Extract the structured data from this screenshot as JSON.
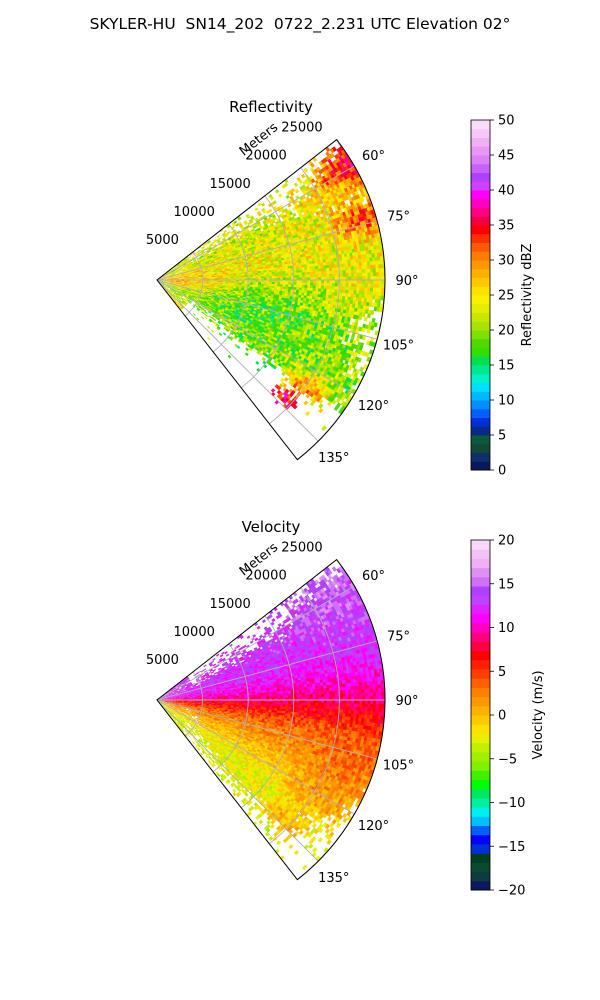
{
  "figure": {
    "title": "SKYLER-HU  SN14_202  0722_2.231 UTC Elevation 02°"
  },
  "chart_data": [
    {
      "type": "heatmap",
      "projection": "polar-sector",
      "title": "Reflectivity",
      "radial_axis_label": "Meters",
      "radial_range": [
        0,
        25000
      ],
      "radial_ticks": [
        5000,
        10000,
        15000,
        20000,
        25000
      ],
      "radial_tick_labels": [
        "5000",
        "10000",
        "15000",
        "20000",
        "25000"
      ],
      "azimuth_range_deg": [
        52,
        142
      ],
      "azimuth_ticks_deg": [
        60,
        75,
        90,
        105,
        120,
        135
      ],
      "azimuth_tick_labels": [
        "60°",
        "75°",
        "90°",
        "105°",
        "120°",
        "135°"
      ],
      "grid": true,
      "colorbar": {
        "label": "Reflectivity dBZ",
        "range": [
          0,
          50
        ],
        "ticks": [
          0,
          5,
          10,
          15,
          20,
          25,
          30,
          35,
          40,
          45,
          50
        ],
        "tick_labels": [
          "0",
          "5",
          "10",
          "15",
          "20",
          "25",
          "30",
          "35",
          "40",
          "45",
          "50"
        ],
        "colors": [
          "#0a1a5c",
          "#0f2f6a",
          "#124a3a",
          "#0b5a3a",
          "#0a2a8a",
          "#0030d8",
          "#0060ff",
          "#0090ff",
          "#00b8ff",
          "#00e0ff",
          "#00f0c8",
          "#00e890",
          "#00e050",
          "#30e000",
          "#50d800",
          "#7ee000",
          "#a8e400",
          "#c8e800",
          "#e4ec00",
          "#f8f000",
          "#ffe000",
          "#ffc800",
          "#ffb000",
          "#ff9800",
          "#ff7c00",
          "#ff5a00",
          "#ff3000",
          "#ff0000",
          "#f20040",
          "#ff0080",
          "#ff00c0",
          "#ff00ff",
          "#d040ff",
          "#b040ff",
          "#c860ff",
          "#dc80f8",
          "#e898f4",
          "#f0b0f4",
          "#f6c8f8",
          "#fadcfa"
        ]
      },
      "blobs": [
        {
          "az": 68,
          "r": 8000,
          "rw": 9000,
          "aw": 11,
          "value": 22
        },
        {
          "az": 80,
          "r": 14000,
          "rw": 10000,
          "aw": 16,
          "value": 25
        },
        {
          "az": 88,
          "r": 19000,
          "rw": 8000,
          "aw": 12,
          "value": 22
        },
        {
          "az": 95,
          "r": 4000,
          "rw": 5000,
          "aw": 18,
          "value": 28
        },
        {
          "az": 98,
          "r": 2500,
          "rw": 2200,
          "aw": 7,
          "value": 33
        },
        {
          "az": 100,
          "r": 9000,
          "rw": 8000,
          "aw": 10,
          "value": 20
        },
        {
          "az": 108,
          "r": 11000,
          "rw": 9000,
          "aw": 12,
          "value": 14
        },
        {
          "az": 112,
          "r": 15000,
          "rw": 9000,
          "aw": 9,
          "value": 22
        },
        {
          "az": 120,
          "r": 18000,
          "rw": 10000,
          "aw": 6,
          "value": 20
        },
        {
          "az": 62,
          "r": 22500,
          "rw": 4000,
          "aw": 6,
          "value": 26
        },
        {
          "az": 60,
          "r": 24000,
          "rw": 2500,
          "aw": 4,
          "value": 42
        },
        {
          "az": 74,
          "r": 23000,
          "rw": 2500,
          "aw": 4,
          "value": 38
        },
        {
          "az": 86,
          "r": 22000,
          "rw": 3500,
          "aw": 10,
          "value": 25
        },
        {
          "az": 100,
          "r": 18000,
          "rw": 2500,
          "aw": 4,
          "value": 21
        },
        {
          "az": 125,
          "r": 20000,
          "rw": 2000,
          "aw": 3,
          "value": 35
        },
        {
          "az": 132,
          "r": 19000,
          "rw": 1500,
          "aw": 2,
          "value": 36
        }
      ]
    },
    {
      "type": "heatmap",
      "projection": "polar-sector",
      "title": "Velocity",
      "radial_axis_label": "Meters",
      "radial_range": [
        0,
        25000
      ],
      "radial_ticks": [
        5000,
        10000,
        15000,
        20000,
        25000
      ],
      "radial_tick_labels": [
        "5000",
        "10000",
        "15000",
        "20000",
        "25000"
      ],
      "azimuth_range_deg": [
        52,
        142
      ],
      "azimuth_ticks_deg": [
        60,
        75,
        90,
        105,
        120,
        135
      ],
      "azimuth_tick_labels": [
        "60°",
        "75°",
        "90°",
        "105°",
        "120°",
        "135°"
      ],
      "grid": true,
      "colorbar": {
        "label": "Velocity (m/s)",
        "range": [
          -20,
          20
        ],
        "ticks": [
          -20,
          -15,
          -10,
          -5,
          0,
          5,
          10,
          15,
          20
        ],
        "tick_labels": [
          "−20",
          "−15",
          "−10",
          "−5",
          "0",
          "5",
          "10",
          "15",
          "20"
        ],
        "colors": [
          "#0a1a5c",
          "#0f3a40",
          "#0a4a30",
          "#004020",
          "#0030d8",
          "#0000ff",
          "#0060ff",
          "#00c0ff",
          "#00f0f0",
          "#00f0a0",
          "#00e860",
          "#00ff00",
          "#40f000",
          "#80f000",
          "#a0f000",
          "#c0f000",
          "#e8f000",
          "#ffe000",
          "#ffc800",
          "#ffb000",
          "#ff9800",
          "#ff8000",
          "#ff6000",
          "#ff4000",
          "#ff2000",
          "#ff0000",
          "#ff0040",
          "#ff0080",
          "#ff00c0",
          "#ff00ff",
          "#e020ff",
          "#c040ff",
          "#b040ff",
          "#d070f8",
          "#e090f4",
          "#f0b0f4",
          "#f4c0f8",
          "#f8d8fa"
        ]
      },
      "blobs": [
        {
          "az": 62,
          "r": 22000,
          "rw": 5000,
          "aw": 8,
          "value": 15
        },
        {
          "az": 72,
          "r": 14000,
          "rw": 14000,
          "aw": 12,
          "value": 13
        },
        {
          "az": 82,
          "r": 12000,
          "rw": 18000,
          "aw": 10,
          "value": 12
        },
        {
          "az": 88,
          "r": 14000,
          "rw": 16000,
          "aw": 8,
          "value": 9
        },
        {
          "az": 95,
          "r": 12000,
          "rw": 14000,
          "aw": 8,
          "value": 6
        },
        {
          "az": 103,
          "r": 12000,
          "rw": 14000,
          "aw": 10,
          "value": 2
        },
        {
          "az": 115,
          "r": 14000,
          "rw": 10000,
          "aw": 10,
          "value": 0
        },
        {
          "az": 128,
          "r": 12000,
          "rw": 9000,
          "aw": 10,
          "value": -3
        },
        {
          "az": 108,
          "r": 21000,
          "rw": 5000,
          "aw": 6,
          "value": 5
        },
        {
          "az": 120,
          "r": 20000,
          "rw": 3000,
          "aw": 6,
          "value": 3
        },
        {
          "az": 133,
          "r": 19000,
          "rw": 2000,
          "aw": 3,
          "value": 2
        }
      ]
    }
  ]
}
